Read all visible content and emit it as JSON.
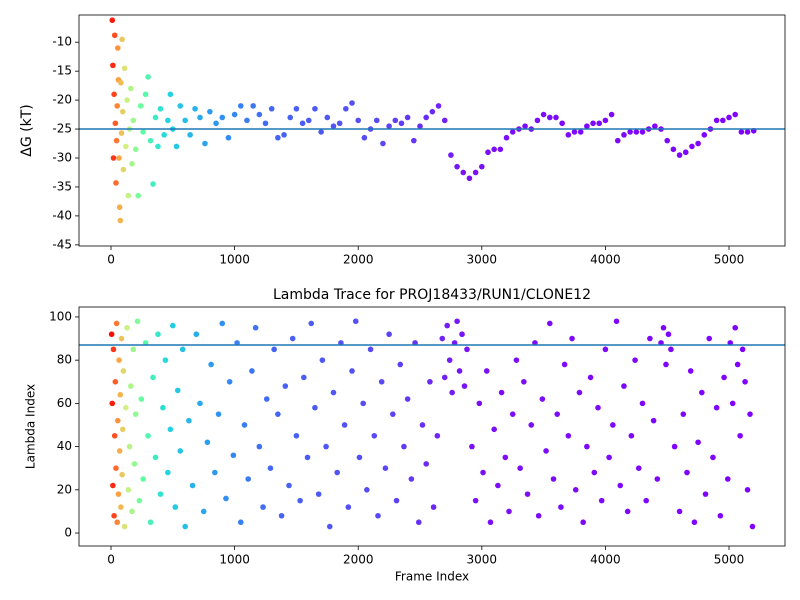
{
  "chart_data": [
    {
      "type": "scatter",
      "ylabel": "ΔG (kT)",
      "xlim": [
        -259,
        5453
      ],
      "ylim": [
        -45.2,
        -5.3
      ],
      "xticks": [
        0,
        1000,
        2000,
        3000,
        4000,
        5000
      ],
      "yticks": [
        -45,
        -40,
        -35,
        -30,
        -25,
        -20,
        -15,
        -10
      ],
      "hline": -25,
      "hline_color": "#1f77b4",
      "colormap": [
        {
          "x": 0,
          "color": "#ff0000"
        },
        {
          "x": 60,
          "color": "#ffa040"
        },
        {
          "x": 120,
          "color": "#d4f080"
        },
        {
          "x": 250,
          "color": "#60ffa0"
        },
        {
          "x": 450,
          "color": "#20d8e0"
        },
        {
          "x": 800,
          "color": "#2c9cf0"
        },
        {
          "x": 1300,
          "color": "#4466f4"
        },
        {
          "x": 2200,
          "color": "#5a48f4"
        },
        {
          "x": 2900,
          "color": "#7a10f6"
        },
        {
          "x": 5200,
          "color": "#8000ff"
        }
      ],
      "x": [
        10,
        15,
        20,
        25,
        30,
        35,
        40,
        45,
        50,
        55,
        60,
        65,
        70,
        75,
        80,
        85,
        90,
        95,
        100,
        110,
        120,
        130,
        140,
        150,
        160,
        170,
        180,
        200,
        220,
        240,
        260,
        280,
        300,
        320,
        340,
        360,
        380,
        400,
        430,
        460,
        480,
        500,
        530,
        560,
        600,
        640,
        680,
        720,
        760,
        800,
        850,
        900,
        950,
        1000,
        1050,
        1100,
        1150,
        1200,
        1250,
        1300,
        1350,
        1400,
        1450,
        1500,
        1550,
        1600,
        1650,
        1700,
        1750,
        1800,
        1850,
        1900,
        1950,
        2000,
        2050,
        2100,
        2150,
        2200,
        2250,
        2300,
        2350,
        2400,
        2450,
        2500,
        2550,
        2600,
        2650,
        2700,
        2750,
        2800,
        2850,
        2900,
        2950,
        3000,
        3050,
        3100,
        3150,
        3200,
        3250,
        3300,
        3350,
        3400,
        3450,
        3500,
        3550,
        3600,
        3650,
        3700,
        3750,
        3800,
        3850,
        3900,
        3950,
        4000,
        4050,
        4100,
        4150,
        4200,
        4250,
        4300,
        4350,
        4400,
        4450,
        4500,
        4550,
        4600,
        4650,
        4700,
        4750,
        4800,
        4850,
        4900,
        4950,
        5000,
        5050,
        5100,
        5150,
        5200
      ],
      "y": [
        -6.2,
        -14,
        -30,
        -19,
        -8.8,
        -24,
        -34.3,
        -27,
        -21,
        -11,
        -16.5,
        -30,
        -38.5,
        -40.8,
        -17,
        -25.7,
        -9.5,
        -22,
        -32,
        -14.5,
        -28,
        -20,
        -36.5,
        -25,
        -18,
        -31,
        -23.5,
        -28.5,
        -36.5,
        -21,
        -25.5,
        -19,
        -16,
        -27,
        -34.5,
        -23,
        -28,
        -21.5,
        -26,
        -23.5,
        -19,
        -25,
        -28,
        -21,
        -23.5,
        -26,
        -21.5,
        -23,
        -27.5,
        -22,
        -24,
        -23,
        -26.5,
        -22.5,
        -21,
        -23.5,
        -21,
        -22.5,
        -24,
        -21.5,
        -26.5,
        -26,
        -23,
        -21.5,
        -24,
        -23.5,
        -21.5,
        -25.5,
        -23,
        -24.5,
        -24,
        -21.5,
        -20.5,
        -23.5,
        -26.5,
        -25,
        -23.5,
        -27.5,
        -24.5,
        -23.5,
        -24,
        -23,
        -27,
        -24.5,
        -23,
        -22,
        -21,
        -23.5,
        -29.5,
        -31.5,
        -32.5,
        -33.5,
        -32.5,
        -31.5,
        -29,
        -28.5,
        -28.5,
        -26.5,
        -25.5,
        -25,
        -24.5,
        -25,
        -23.5,
        -22.5,
        -23,
        -23,
        -24,
        -26,
        -25.5,
        -25.5,
        -24.5,
        -24,
        -24,
        -23.5,
        -22.5,
        -27,
        -26,
        -25.5,
        -25.5,
        -25.5,
        -25,
        -24.5,
        -25,
        -27,
        -28.5,
        -29.5,
        -29,
        -28,
        -27.5,
        -26,
        -25,
        -23.5,
        -23.5,
        -23,
        -22.5,
        -25.5,
        -25.5,
        -25.3
      ]
    },
    {
      "type": "scatter",
      "title": "Lambda Trace for PROJ18433/RUN1/CLONE12",
      "xlabel": "Frame Index",
      "ylabel": "Lambda Index",
      "xlim": [
        -259,
        5453
      ],
      "ylim": [
        -6,
        104.6
      ],
      "xticks": [
        0,
        1000,
        2000,
        3000,
        4000,
        5000
      ],
      "yticks": [
        0,
        20,
        40,
        60,
        80,
        100
      ],
      "hline": 87,
      "hline_color": "#1f77b4",
      "colormap": [
        {
          "x": 0,
          "color": "#ff0000"
        },
        {
          "x": 60,
          "color": "#ffa040"
        },
        {
          "x": 120,
          "color": "#d4f080"
        },
        {
          "x": 250,
          "color": "#60ffa0"
        },
        {
          "x": 450,
          "color": "#20d8e0"
        },
        {
          "x": 800,
          "color": "#2c9cf0"
        },
        {
          "x": 1300,
          "color": "#4466f4"
        },
        {
          "x": 2200,
          "color": "#5a48f4"
        },
        {
          "x": 2900,
          "color": "#7a10f6"
        },
        {
          "x": 5200,
          "color": "#8000ff"
        }
      ],
      "x": [
        5,
        10,
        15,
        20,
        25,
        30,
        35,
        40,
        45,
        50,
        55,
        60,
        65,
        70,
        75,
        80,
        85,
        90,
        95,
        100,
        110,
        120,
        130,
        140,
        150,
        160,
        170,
        180,
        190,
        200,
        215,
        230,
        245,
        260,
        280,
        300,
        320,
        340,
        360,
        380,
        400,
        420,
        440,
        460,
        480,
        500,
        520,
        540,
        560,
        580,
        600,
        630,
        660,
        690,
        720,
        750,
        780,
        810,
        840,
        870,
        900,
        930,
        960,
        990,
        1020,
        1050,
        1080,
        1110,
        1140,
        1170,
        1200,
        1230,
        1260,
        1290,
        1320,
        1350,
        1380,
        1410,
        1440,
        1470,
        1500,
        1530,
        1560,
        1590,
        1620,
        1650,
        1680,
        1710,
        1740,
        1770,
        1800,
        1830,
        1860,
        1890,
        1920,
        1950,
        1980,
        2010,
        2040,
        2070,
        2100,
        2130,
        2160,
        2190,
        2220,
        2250,
        2280,
        2310,
        2340,
        2370,
        2400,
        2430,
        2460,
        2490,
        2520,
        2550,
        2580,
        2610,
        2640,
        2680,
        2700,
        2720,
        2740,
        2760,
        2780,
        2800,
        2820,
        2840,
        2860,
        2880,
        2920,
        2950,
        2980,
        3010,
        3040,
        3070,
        3100,
        3130,
        3160,
        3190,
        3220,
        3250,
        3280,
        3310,
        3340,
        3370,
        3400,
        3430,
        3460,
        3490,
        3520,
        3550,
        3580,
        3610,
        3640,
        3670,
        3700,
        3730,
        3760,
        3790,
        3820,
        3850,
        3880,
        3910,
        3940,
        3970,
        4000,
        4030,
        4060,
        4090,
        4120,
        4150,
        4180,
        4210,
        4240,
        4270,
        4300,
        4330,
        4360,
        4390,
        4420,
        4450,
        4470,
        4490,
        4510,
        4530,
        4560,
        4600,
        4630,
        4660,
        4690,
        4720,
        4750,
        4780,
        4810,
        4840,
        4870,
        4900,
        4930,
        4960,
        4990,
        5010,
        5030,
        5050,
        5070,
        5090,
        5110,
        5130,
        5150,
        5170,
        5190
      ],
      "y": [
        92,
        60,
        22,
        85,
        8,
        45,
        70,
        30,
        97,
        5,
        52,
        18,
        80,
        38,
        64,
        12,
        90,
        27,
        48,
        75,
        3,
        58,
        95,
        20,
        40,
        68,
        10,
        85,
        32,
        55,
        98,
        15,
        62,
        25,
        88,
        45,
        5,
        72,
        35,
        92,
        18,
        58,
        80,
        28,
        48,
        96,
        12,
        66,
        38,
        85,
        3,
        52,
        22,
        92,
        60,
        10,
        42,
        78,
        28,
        55,
        97,
        16,
        70,
        36,
        88,
        5,
        50,
        25,
        75,
        95,
        40,
        12,
        62,
        30,
        85,
        55,
        8,
        68,
        22,
        90,
        45,
        15,
        72,
        35,
        97,
        58,
        18,
        80,
        40,
        3,
        65,
        28,
        88,
        50,
        12,
        75,
        98,
        35,
        60,
        20,
        85,
        45,
        8,
        70,
        30,
        92,
        55,
        15,
        78,
        40,
        62,
        25,
        88,
        5,
        50,
        32,
        70,
        12,
        45,
        90,
        72,
        96,
        80,
        65,
        88,
        98,
        75,
        92,
        68,
        85,
        40,
        15,
        60,
        28,
        75,
        5,
        48,
        22,
        65,
        35,
        10,
        55,
        80,
        30,
        70,
        18,
        50,
        88,
        8,
        62,
        38,
        97,
        25,
        55,
        12,
        78,
        45,
        90,
        20,
        65,
        5,
        40,
        72,
        28,
        58,
        15,
        85,
        35,
        50,
        98,
        22,
        68,
        10,
        45,
        80,
        30,
        60,
        15,
        90,
        52,
        25,
        88,
        95,
        78,
        92,
        85,
        40,
        10,
        55,
        28,
        75,
        5,
        42,
        65,
        18,
        90,
        35,
        58,
        8,
        72,
        25,
        88,
        60,
        95,
        78,
        45,
        85,
        70,
        20,
        55,
        3
      ]
    }
  ]
}
